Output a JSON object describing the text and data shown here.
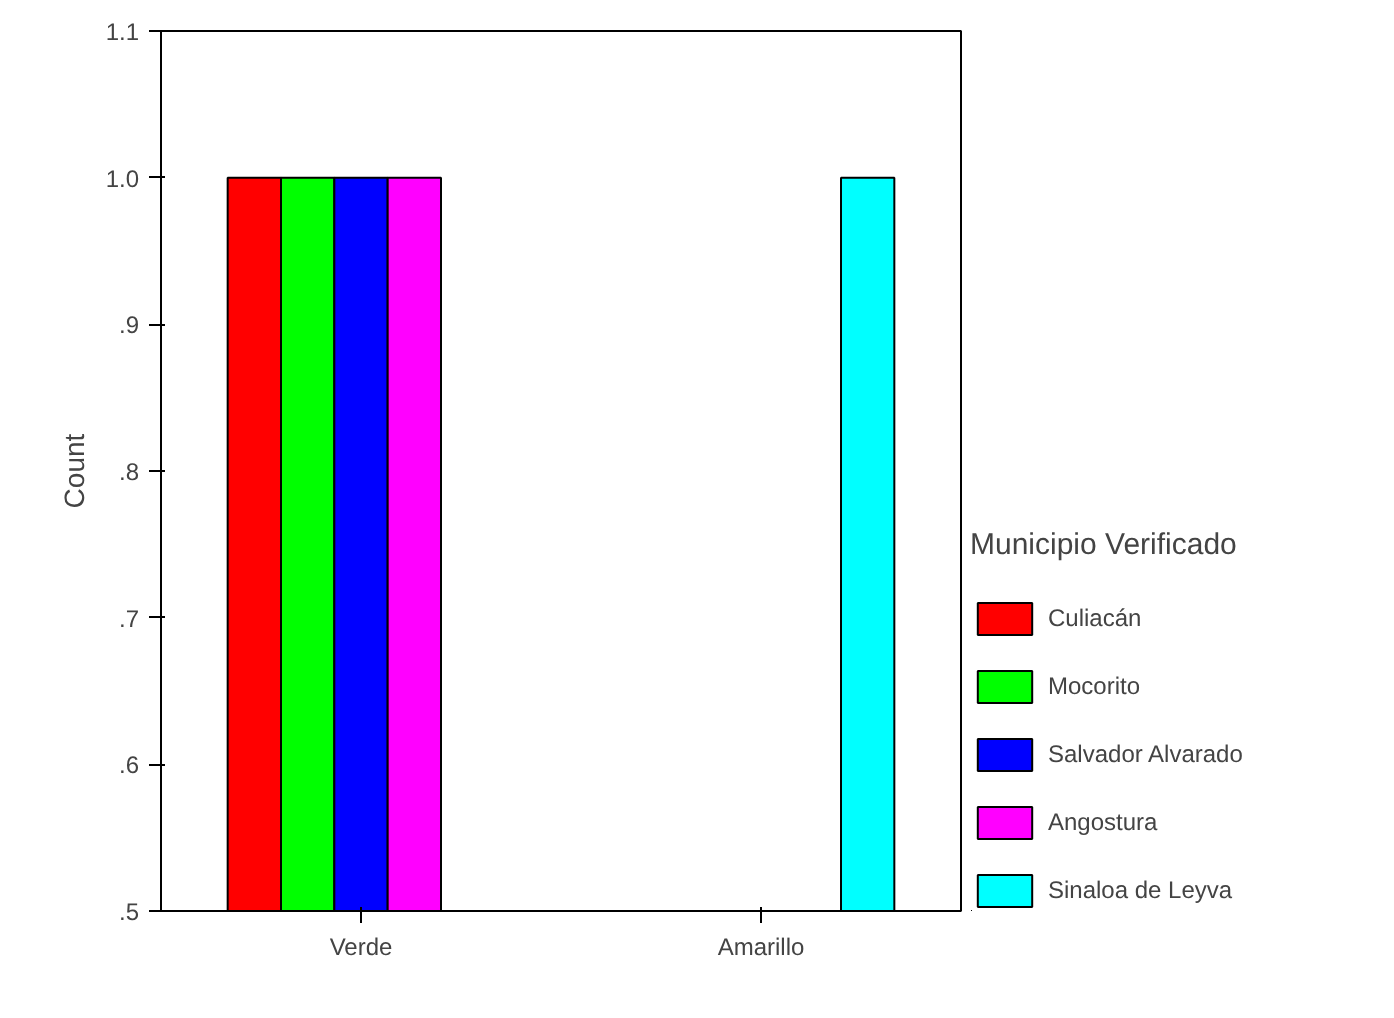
{
  "chart_data": {
    "type": "bar",
    "ylabel": "Count",
    "legend_title": "Municipio Verificado",
    "categories": [
      "Verde",
      "Amarillo"
    ],
    "series": [
      {
        "name": "Culiacán",
        "color": "#ff0000",
        "values": [
          1.0,
          null
        ]
      },
      {
        "name": "Mocorito",
        "color": "#00ff00",
        "values": [
          1.0,
          null
        ]
      },
      {
        "name": "Salvador Alvarado",
        "color": "#0000ff",
        "values": [
          1.0,
          null
        ]
      },
      {
        "name": "Angostura",
        "color": "#ff00ff",
        "values": [
          1.0,
          null
        ]
      },
      {
        "name": "Sinaloa de Leyva",
        "color": "#00ffff",
        "values": [
          null,
          1.0
        ]
      }
    ],
    "ylim": [
      0.5,
      1.1
    ],
    "yticks": [
      {
        "value": 0.5,
        "label": ".5"
      },
      {
        "value": 0.6,
        "label": ".6"
      },
      {
        "value": 0.7,
        "label": ".7"
      },
      {
        "value": 0.8,
        "label": ".8"
      },
      {
        "value": 0.9,
        "label": ".9"
      },
      {
        "value": 1.0,
        "label": "1.0"
      },
      {
        "value": 1.1,
        "label": "1.1"
      }
    ],
    "grid": false,
    "legend": "right"
  }
}
